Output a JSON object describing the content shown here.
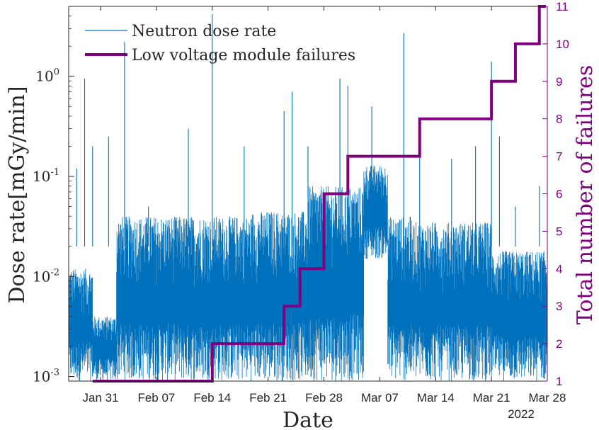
{
  "chart_data": {
    "type": "line",
    "xlabel": "Date",
    "ylabel": "Dose rate[mGy/min]",
    "y2label": "Total number of failures",
    "year_label": "2022",
    "x_ticks": [
      "Jan 31",
      "Feb 07",
      "Feb 14",
      "Feb 21",
      "Feb 28",
      "Mar 07",
      "Mar 14",
      "Mar 21",
      "Mar 28"
    ],
    "x_range": [
      "2022-01-27",
      "2022-03-28"
    ],
    "y_scale": "log",
    "ylim": [
      0.0009,
      5
    ],
    "y_ticks": [
      "10^0",
      "10^-1",
      "10^-2",
      "10^-3"
    ],
    "y2lim": [
      1,
      11
    ],
    "y2_ticks": [
      "1",
      "2",
      "3",
      "4",
      "5",
      "6",
      "7",
      "8",
      "9",
      "10",
      "11"
    ],
    "legend_position": "top-left",
    "series": [
      {
        "name": "Neutron dose rate",
        "axis": "left",
        "color": "#0072BD",
        "segments": [
          {
            "start": "2022-01-27",
            "end": "2022-01-30",
            "low": 0.0009,
            "high": 0.012
          },
          {
            "start": "2022-01-30",
            "end": "2022-02-02",
            "low": 0.0009,
            "high": 0.004
          },
          {
            "start": "2022-02-02",
            "end": "2022-02-19",
            "low": 0.0009,
            "high": 0.04
          },
          {
            "start": "2022-02-19",
            "end": "2022-02-26",
            "low": 0.0009,
            "high": 0.045
          },
          {
            "start": "2022-02-26",
            "end": "2022-03-05",
            "low": 0.0009,
            "high": 0.08
          },
          {
            "start": "2022-03-05",
            "end": "2022-03-08",
            "low": 0.015,
            "high": 0.13
          },
          {
            "start": "2022-03-08",
            "end": "2022-03-11",
            "low": 0.0009,
            "high": 0.04
          },
          {
            "start": "2022-03-11",
            "end": "2022-03-21",
            "low": 0.0009,
            "high": 0.035
          },
          {
            "start": "2022-03-21",
            "end": "2022-03-28",
            "low": 0.0009,
            "high": 0.018
          }
        ],
        "spikes": [
          {
            "date": "2022-01-28",
            "value": 0.12
          },
          {
            "date": "2022-01-29",
            "value": 0.95
          },
          {
            "date": "2022-01-30",
            "value": 0.2
          },
          {
            "date": "2022-02-01",
            "value": 0.25
          },
          {
            "date": "2022-02-03",
            "value": 2.2
          },
          {
            "date": "2022-02-06",
            "value": 0.05
          },
          {
            "date": "2022-02-11",
            "value": 0.3
          },
          {
            "date": "2022-02-14",
            "value": 4.2
          },
          {
            "date": "2022-02-18",
            "value": 0.2
          },
          {
            "date": "2022-02-23",
            "value": 0.45
          },
          {
            "date": "2022-02-24",
            "value": 0.7
          },
          {
            "date": "2022-02-26",
            "value": 0.2
          },
          {
            "date": "2022-03-02",
            "value": 0.95
          },
          {
            "date": "2022-03-03",
            "value": 0.8
          },
          {
            "date": "2022-03-06",
            "value": 0.5
          },
          {
            "date": "2022-03-10",
            "value": 2.7
          },
          {
            "date": "2022-03-12",
            "value": 0.35
          },
          {
            "date": "2022-03-16",
            "value": 0.15
          },
          {
            "date": "2022-03-19",
            "value": 0.2
          },
          {
            "date": "2022-03-21",
            "value": 1.4
          },
          {
            "date": "2022-03-22",
            "value": 0.25
          },
          {
            "date": "2022-03-24",
            "value": 0.05
          },
          {
            "date": "2022-03-27",
            "value": 0.08
          }
        ]
      },
      {
        "name": "Low voltage module failures",
        "axis": "right",
        "color": "#800080",
        "steps": [
          {
            "date": "2022-01-30",
            "value": 1
          },
          {
            "date": "2022-02-14",
            "value": 2
          },
          {
            "date": "2022-02-23",
            "value": 3
          },
          {
            "date": "2022-02-25",
            "value": 4
          },
          {
            "date": "2022-02-28",
            "value": 6
          },
          {
            "date": "2022-03-03",
            "value": 7
          },
          {
            "date": "2022-03-12",
            "value": 8
          },
          {
            "date": "2022-03-21",
            "value": 9
          },
          {
            "date": "2022-03-24",
            "value": 10
          },
          {
            "date": "2022-03-27",
            "value": 11
          }
        ]
      }
    ]
  }
}
